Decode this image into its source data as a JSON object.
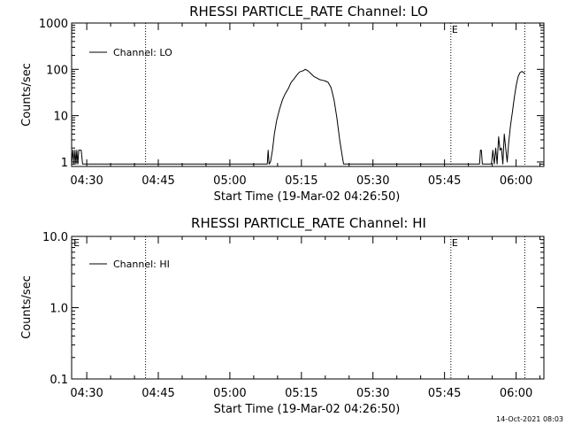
{
  "footer_timestamp": "14-Oct-2021 08:03",
  "chart_data": [
    {
      "type": "line",
      "title": "RHESSI PARTICLE_RATE Channel: LO",
      "xlabel": "Start Time (19-Mar-02 04:26:50)",
      "ylabel": "Counts/sec",
      "yscale": "log",
      "xlim_minutes": [
        0,
        99
      ],
      "ylim": [
        0.8,
        1000
      ],
      "x_ticks": [
        {
          "minute": 3.17,
          "label": "04:30"
        },
        {
          "minute": 18.17,
          "label": "04:45"
        },
        {
          "minute": 33.17,
          "label": "05:00"
        },
        {
          "minute": 48.17,
          "label": "05:15"
        },
        {
          "minute": 63.17,
          "label": "05:30"
        },
        {
          "minute": 78.17,
          "label": "05:45"
        },
        {
          "minute": 93.17,
          "label": "06:00"
        }
      ],
      "y_ticks": [
        {
          "value": 1,
          "label": "1"
        },
        {
          "value": 10,
          "label": "10"
        },
        {
          "value": 100,
          "label": "100"
        },
        {
          "value": 1000,
          "label": "1000"
        }
      ],
      "vlines_minutes": [
        15.5,
        79.5,
        95.0
      ],
      "annotations": [
        {
          "minute": 79.7,
          "text": "E"
        }
      ],
      "legend": {
        "label": "Channel: LO",
        "position": "top-left"
      },
      "series": [
        {
          "name": "Channel: LO",
          "x": [
            0,
            0.3,
            0.5,
            0.7,
            0.9,
            1.1,
            1.3,
            1.5,
            1.7,
            2.0,
            2.3,
            41.0,
            41.2,
            41.4,
            41.7,
            42.1,
            42.5,
            43.0,
            43.6,
            44.2,
            44.8,
            45.4,
            46.0,
            46.6,
            47.2,
            47.8,
            48.4,
            49.0,
            49.6,
            50.2,
            50.8,
            51.4,
            52.0,
            52.6,
            53.2,
            53.8,
            54.4,
            55.0,
            55.6,
            56.2,
            56.8,
            57.0,
            85.5,
            85.7,
            85.9,
            86.1,
            88.0,
            88.3,
            88.6,
            88.9,
            89.2,
            89.5,
            89.8,
            90.1,
            90.4,
            90.7,
            91.0,
            91.3,
            91.6,
            92.0,
            92.4,
            92.8,
            93.2,
            93.6,
            94.0,
            94.4,
            94.8,
            95.0
          ],
          "values": [
            0.9,
            1.8,
            0.9,
            1.8,
            0.9,
            1.8,
            0.9,
            1.8,
            1.8,
            1.8,
            0.9,
            0.9,
            1.8,
            0.9,
            1.0,
            1.8,
            4.0,
            8.0,
            14.0,
            22.0,
            30.0,
            38.0,
            52.0,
            62.0,
            75.0,
            88.0,
            92.0,
            100.0,
            92.0,
            80.0,
            70.0,
            65.0,
            60.0,
            58.0,
            56.0,
            52.0,
            40.0,
            22.0,
            9.0,
            3.0,
            1.2,
            0.9,
            0.9,
            1.8,
            1.8,
            0.9,
            0.9,
            1.8,
            0.9,
            2.0,
            0.9,
            3.5,
            1.8,
            2.0,
            0.9,
            4.0,
            2.0,
            1.0,
            2.5,
            6.0,
            12.0,
            25.0,
            45.0,
            70.0,
            85.0,
            90.0,
            85.0,
            80.0
          ]
        }
      ]
    },
    {
      "type": "line",
      "title": "RHESSI PARTICLE_RATE Channel: HI",
      "xlabel": "Start Time (19-Mar-02 04:26:50)",
      "ylabel": "Counts/sec",
      "yscale": "log",
      "xlim_minutes": [
        0,
        99
      ],
      "ylim": [
        0.1,
        10.0
      ],
      "x_ticks": [
        {
          "minute": 3.17,
          "label": "04:30"
        },
        {
          "minute": 18.17,
          "label": "04:45"
        },
        {
          "minute": 33.17,
          "label": "05:00"
        },
        {
          "minute": 48.17,
          "label": "05:15"
        },
        {
          "minute": 63.17,
          "label": "05:30"
        },
        {
          "minute": 78.17,
          "label": "05:45"
        },
        {
          "minute": 93.17,
          "label": "06:00"
        }
      ],
      "y_ticks": [
        {
          "value": 0.1,
          "label": "0.1"
        },
        {
          "value": 1.0,
          "label": "1.0"
        },
        {
          "value": 10.0,
          "label": "10.0"
        }
      ],
      "vlines_minutes": [
        15.5,
        79.5,
        95.0
      ],
      "annotations": [
        {
          "minute": 0.4,
          "text": "E"
        },
        {
          "minute": 79.7,
          "text": "E"
        }
      ],
      "legend": {
        "label": "Channel: HI",
        "position": "top-left"
      },
      "series": [
        {
          "name": "Channel: HI",
          "x": [],
          "values": []
        }
      ]
    }
  ]
}
